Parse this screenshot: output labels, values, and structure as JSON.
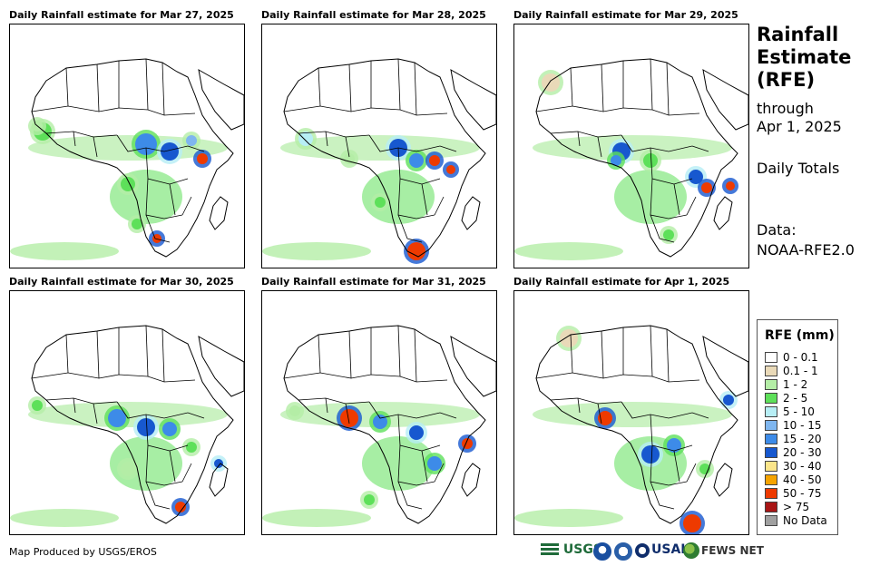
{
  "panels": [
    {
      "title": "Daily Rainfall estimate for Mar 27, 2025"
    },
    {
      "title": "Daily Rainfall estimate for Mar 28, 2025"
    },
    {
      "title": "Daily Rainfall estimate for Mar 29, 2025"
    },
    {
      "title": "Daily Rainfall estimate for Mar 30, 2025"
    },
    {
      "title": "Daily Rainfall estimate for Mar 31, 2025"
    },
    {
      "title": "Daily Rainfall estimate for Apr 1, 2025"
    }
  ],
  "sidebar": {
    "title_1": "Rainfall",
    "title_2": "Estimate",
    "title_3": "(RFE)",
    "through_label": "through",
    "through_date": "Apr 1, 2025",
    "totals_label": "Daily Totals",
    "data_label": "Data:",
    "data_source": "NOAA-RFE2.0"
  },
  "legend": {
    "title": "RFE (mm)",
    "items": [
      {
        "label": "0 - 0.1",
        "color": "#ffffff"
      },
      {
        "label": "0.1 - 1",
        "color": "#e9d9b8"
      },
      {
        "label": "1 - 2",
        "color": "#b4eda6"
      },
      {
        "label": "2 - 5",
        "color": "#5ee05a"
      },
      {
        "label": "5 - 10",
        "color": "#b7eef5"
      },
      {
        "label": "10 - 15",
        "color": "#7fb6ef"
      },
      {
        "label": "15 - 20",
        "color": "#3d8be8"
      },
      {
        "label": "20 - 30",
        "color": "#1758cf"
      },
      {
        "label": "30 - 40",
        "color": "#fbe58a"
      },
      {
        "label": "40 - 50",
        "color": "#f5a300"
      },
      {
        "label": "50 - 75",
        "color": "#ee3a00"
      },
      {
        "label": "> 75",
        "color": "#a81515"
      },
      {
        "label": "No Data",
        "color": "#a0a0a0"
      }
    ]
  },
  "footer": {
    "credit": "Map Produced by USGS/EROS",
    "logo_usgs": "USGS",
    "logo_usaid": "USAID",
    "logo_fews": "FEWS NET"
  }
}
